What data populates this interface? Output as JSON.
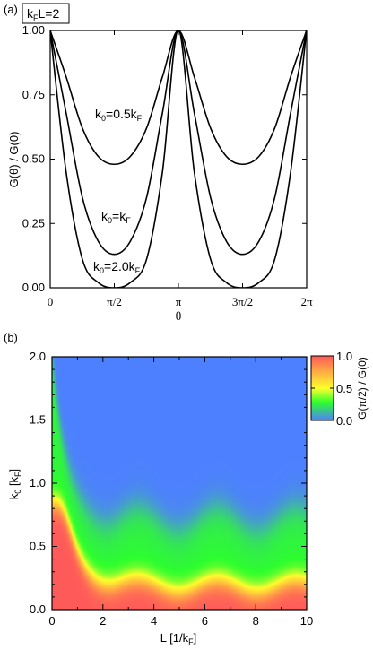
{
  "panel_a": {
    "label": "(a)",
    "param_box": {
      "k": "k",
      "sub": "F",
      "rest": "L=2"
    },
    "ylabel": "G(θ) / G(0)",
    "xlabel": "θ",
    "curve_labels": [
      {
        "pre": "k",
        "sub0": "0",
        "mid": "=0.5k",
        "subF": "F"
      },
      {
        "pre": "k",
        "sub0": "0",
        "mid": "=k",
        "subF": "F"
      },
      {
        "pre": "k",
        "sub0": "0",
        "mid": "=2.0k",
        "subF": "F"
      }
    ]
  },
  "panel_b": {
    "label": "(b)",
    "xlabel": "L [1/k",
    "xlabel_sub": "F",
    "xlabel_end": "]",
    "ylabel": "k",
    "ylabel_sub0": "0",
    "ylabel_mid": " [k",
    "ylabel_subF": "F",
    "ylabel_end": "]",
    "colorbar": {
      "label": "G(π/2) / G(0)",
      "ticks": [
        "1.0",
        "0.5",
        "0.0"
      ],
      "colors": [
        "#ff5a5a",
        "#ffff2d",
        "#2dff2d",
        "#4d80ff"
      ]
    }
  },
  "chart_data": [
    {
      "type": "line",
      "x_tick_labels": [
        "0",
        "π/2",
        "π",
        "3π/2",
        "2π"
      ],
      "x_ticks": [
        0,
        1.5708,
        3.1416,
        4.7124,
        6.2832
      ],
      "y_tick_labels": [
        "0.00",
        "0.25",
        "0.50",
        "0.75",
        "1.00"
      ],
      "y_ticks": [
        0,
        0.25,
        0.5,
        0.75,
        1.0
      ],
      "xlim": [
        0,
        6.2832
      ],
      "ylim": [
        0,
        1.0
      ],
      "series": [
        {
          "name": "k0=0.5kF",
          "x": [
            0,
            0.39,
            0.79,
            1.18,
            1.57,
            1.96,
            2.36,
            2.75,
            3.14,
            3.53,
            3.93,
            4.32,
            4.71,
            5.11,
            5.5,
            5.89,
            6.28
          ],
          "y": [
            1.0,
            0.82,
            0.62,
            0.51,
            0.48,
            0.51,
            0.62,
            0.82,
            1.0,
            0.82,
            0.62,
            0.51,
            0.48,
            0.51,
            0.62,
            0.82,
            1.0
          ]
        },
        {
          "name": "k0=kF",
          "x": [
            0,
            0.39,
            0.79,
            1.18,
            1.57,
            1.96,
            2.36,
            2.75,
            3.14,
            3.53,
            3.93,
            4.32,
            4.71,
            5.11,
            5.5,
            5.89,
            6.28
          ],
          "y": [
            1.0,
            0.68,
            0.35,
            0.18,
            0.13,
            0.18,
            0.35,
            0.68,
            1.0,
            0.68,
            0.35,
            0.18,
            0.13,
            0.18,
            0.35,
            0.68,
            1.0
          ]
        },
        {
          "name": "k0=2.0kF",
          "x": [
            0,
            0.39,
            0.79,
            1.18,
            1.57,
            1.96,
            2.36,
            2.75,
            3.14,
            3.53,
            3.93,
            4.32,
            4.71,
            5.11,
            5.5,
            5.89,
            6.28
          ],
          "y": [
            1.0,
            0.45,
            0.11,
            0.02,
            0.0,
            0.02,
            0.11,
            0.45,
            1.0,
            0.45,
            0.11,
            0.02,
            0.0,
            0.02,
            0.11,
            0.45,
            1.0
          ]
        }
      ]
    },
    {
      "type": "heatmap",
      "x_tick_labels": [
        "0",
        "2",
        "4",
        "6",
        "8",
        "10"
      ],
      "x_ticks": [
        0,
        2,
        4,
        6,
        8,
        10
      ],
      "y_tick_labels": [
        "0.0",
        "0.5",
        "1.0",
        "1.5",
        "2.0"
      ],
      "y_ticks": [
        0,
        0.5,
        1.0,
        1.5,
        2.0
      ],
      "xlim": [
        0,
        10
      ],
      "ylim": [
        0,
        2
      ],
      "zlim": [
        0,
        1
      ],
      "z_description_points": [
        {
          "L": 0.3,
          "k0": 1.0,
          "z": 1.0
        },
        {
          "L": 2.0,
          "k0": 0.35,
          "z": 0.75
        },
        {
          "L": 5.0,
          "k0": 0.5,
          "z": 0.45
        },
        {
          "L": 5.0,
          "k0": 0.9,
          "z": 0.2
        },
        {
          "L": 5.0,
          "k0": 1.5,
          "z": 0.0
        },
        {
          "L": 8.0,
          "k0": 0.1,
          "z": 0.95
        }
      ]
    }
  ]
}
